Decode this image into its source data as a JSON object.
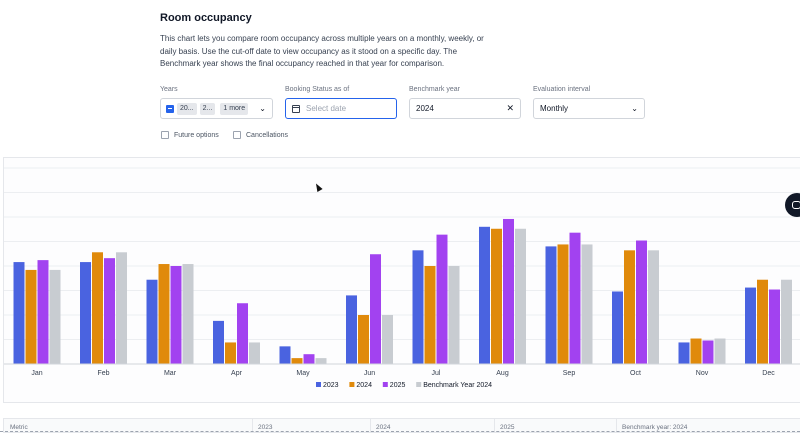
{
  "header": {
    "title": "Room occupancy",
    "description": "This chart lets you compare room occupancy across multiple years on a monthly, weekly, or daily basis. Use the cut-off date to view occupancy as it stood on a specific day. The Benchmark year shows the final occupancy reached in that year for comparison."
  },
  "filters": {
    "years_label": "Years",
    "years_chip_1": "20...",
    "years_chip_2": "2...",
    "years_more": "1 more",
    "booking_label": "Booking Status as of",
    "booking_placeholder": "Select date",
    "benchmark_label": "Benchmark year",
    "benchmark_value": "2024",
    "interval_label": "Evaluation interval",
    "interval_value": "Monthly"
  },
  "options": {
    "future_options": "Future options",
    "cancellations": "Cancellations"
  },
  "colors": {
    "s2023": "#4a63e0",
    "s2024": "#e08a0b",
    "s2025": "#a242f0",
    "bench": "#c8ccd1",
    "accent": "#2563eb"
  },
  "chart_data": {
    "type": "bar",
    "categories": [
      "Jan",
      "Feb",
      "Mar",
      "Apr",
      "May",
      "Jun",
      "Jul",
      "Aug",
      "Sep",
      "Oct",
      "Nov",
      "Dec"
    ],
    "series": [
      {
        "name": "2023",
        "values": [
          52,
          52,
          43,
          22,
          9,
          35,
          58,
          70,
          60,
          37,
          11,
          39
        ]
      },
      {
        "name": "2024",
        "values": [
          48,
          57,
          51,
          11,
          3,
          25,
          50,
          69,
          61,
          58,
          13,
          43
        ]
      },
      {
        "name": "2025",
        "values": [
          53,
          54,
          50,
          31,
          5,
          56,
          66,
          74,
          67,
          63,
          12,
          38
        ]
      },
      {
        "name": "Benchmark Year 2024",
        "values": [
          48,
          57,
          51,
          11,
          3,
          25,
          50,
          69,
          61,
          58,
          13,
          43
        ]
      }
    ],
    "ylim": [
      0,
      100
    ],
    "grid": true,
    "legend": "bottom"
  },
  "table": {
    "columns": [
      "Metric",
      "2023",
      "2024",
      "2025",
      "Benchmark year: 2024"
    ]
  }
}
